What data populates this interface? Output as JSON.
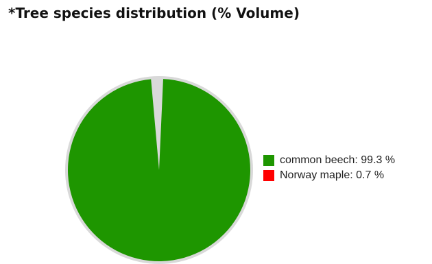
{
  "chart_data": {
    "type": "pie",
    "title": "*Tree species distribution (% Volume)",
    "categories": [
      "common beech",
      "Norway maple"
    ],
    "values": [
      99.3,
      0.7
    ],
    "unit": "%",
    "colors": [
      "#1e9600",
      "#ff0000"
    ],
    "legend": {
      "placement": "right",
      "items": [
        {
          "label": "common beech: 99.3 %",
          "color": "#1e9600"
        },
        {
          "label": "Norway maple: 0.7 %",
          "color": "#ff0000"
        }
      ]
    }
  }
}
